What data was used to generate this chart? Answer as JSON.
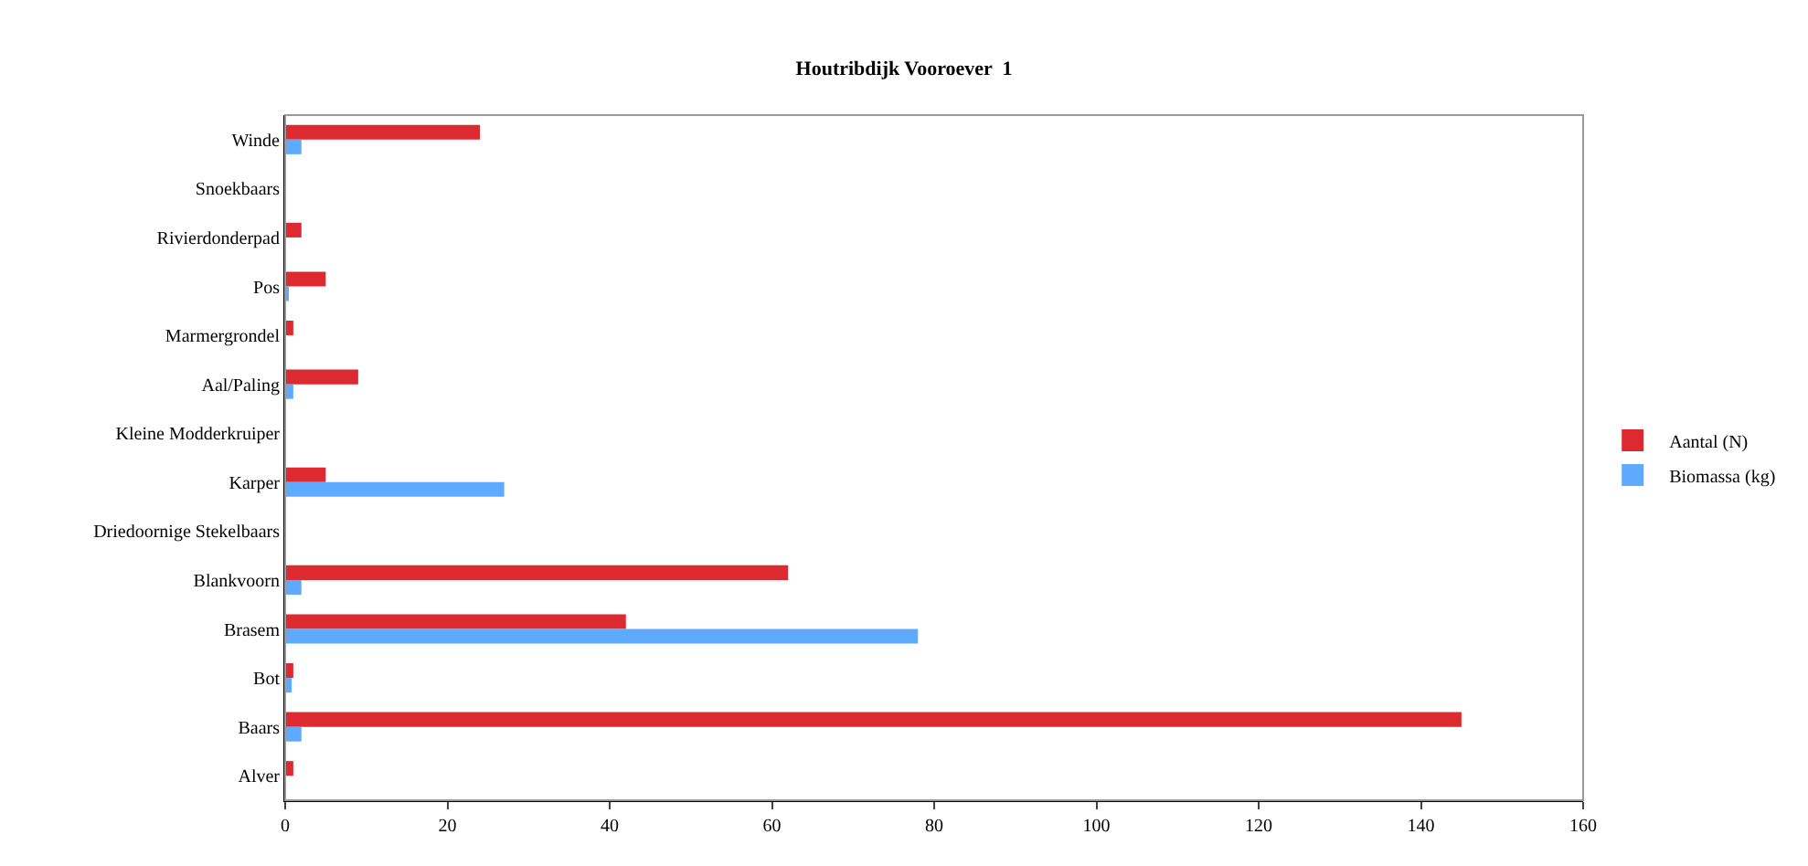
{
  "chart_data": {
    "type": "bar",
    "orientation": "horizontal",
    "title": "Houtribdijk Vooroever  1",
    "categories": [
      "Winde",
      "Snoekbaars",
      "Rivierdonderpad",
      "Pos",
      "Marmergrondel",
      "Aal/Paling",
      "Kleine Modderkruiper",
      "Karper",
      "Driedoornige Stekelbaars",
      "Blankvoorn",
      "Brasem",
      "Bot",
      "Baars",
      "Alver"
    ],
    "series": [
      {
        "name": "Aantal (N)",
        "color": "#dd2a30",
        "values": [
          24,
          0,
          2,
          5,
          1,
          9,
          0,
          5,
          0,
          62,
          42,
          1,
          145,
          1
        ]
      },
      {
        "name": "Biomassa (kg)",
        "color": "#5eaaff",
        "values": [
          2,
          0,
          0,
          0.3,
          0,
          1,
          0,
          27,
          0,
          2,
          78,
          0.8,
          2,
          0
        ]
      }
    ],
    "xlim": [
      0,
      160
    ],
    "xticks": [
      0,
      20,
      40,
      60,
      80,
      100,
      120,
      140,
      160
    ],
    "legend": "right"
  }
}
